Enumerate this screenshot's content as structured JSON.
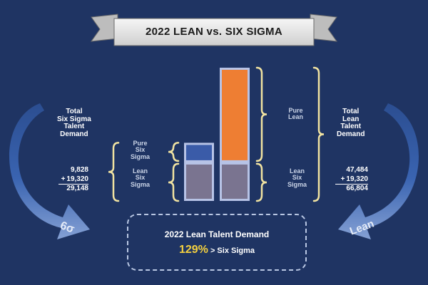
{
  "title": "2022 LEAN vs. SIX SIGMA",
  "left_panel": {
    "label_lines": [
      "Total",
      "Six Sigma",
      "Talent",
      "Demand"
    ],
    "pure_label": [
      "Pure",
      "Six",
      "Sigma"
    ],
    "lean_label": [
      "Lean",
      "Six",
      "Sigma"
    ],
    "math": {
      "a": "9,828",
      "b": "19,320",
      "total": "29,148"
    },
    "arrow_label": "6σ"
  },
  "right_panel": {
    "label_lines": [
      "Total",
      "Lean",
      "Talent",
      "Demand"
    ],
    "pure_label": [
      "Pure",
      "Lean"
    ],
    "lean_label": [
      "Lean",
      "Six",
      "Sigma"
    ],
    "math": {
      "a": "47,484",
      "b": "19,320",
      "total": "66,804"
    },
    "arrow_label": "Lean"
  },
  "callout": {
    "title": "2022 Lean Talent Demand",
    "percent": "129%",
    "suffix": "> Six Sigma"
  },
  "colors": {
    "background": "#1f3463",
    "pure_six_sigma": "#3a5ba8",
    "pure_lean": "#ee7e33",
    "lean_six_sigma": "#7a7490",
    "bar_border": "#b7c3e6",
    "brace": "#f1e3a1"
  },
  "chart_data": {
    "type": "bar",
    "stacked": true,
    "categories": [
      "Six Sigma",
      "Lean"
    ],
    "series": [
      {
        "name": "Lean Six Sigma",
        "values": [
          19320,
          19320
        ]
      },
      {
        "name": "Pure Six Sigma",
        "values": [
          9828,
          0
        ]
      },
      {
        "name": "Pure Lean",
        "values": [
          0,
          47484
        ]
      }
    ],
    "totals": [
      29148,
      66804
    ],
    "ylim": [
      0,
      66804
    ],
    "grid": false,
    "title": "2022 LEAN vs. SIX SIGMA"
  }
}
